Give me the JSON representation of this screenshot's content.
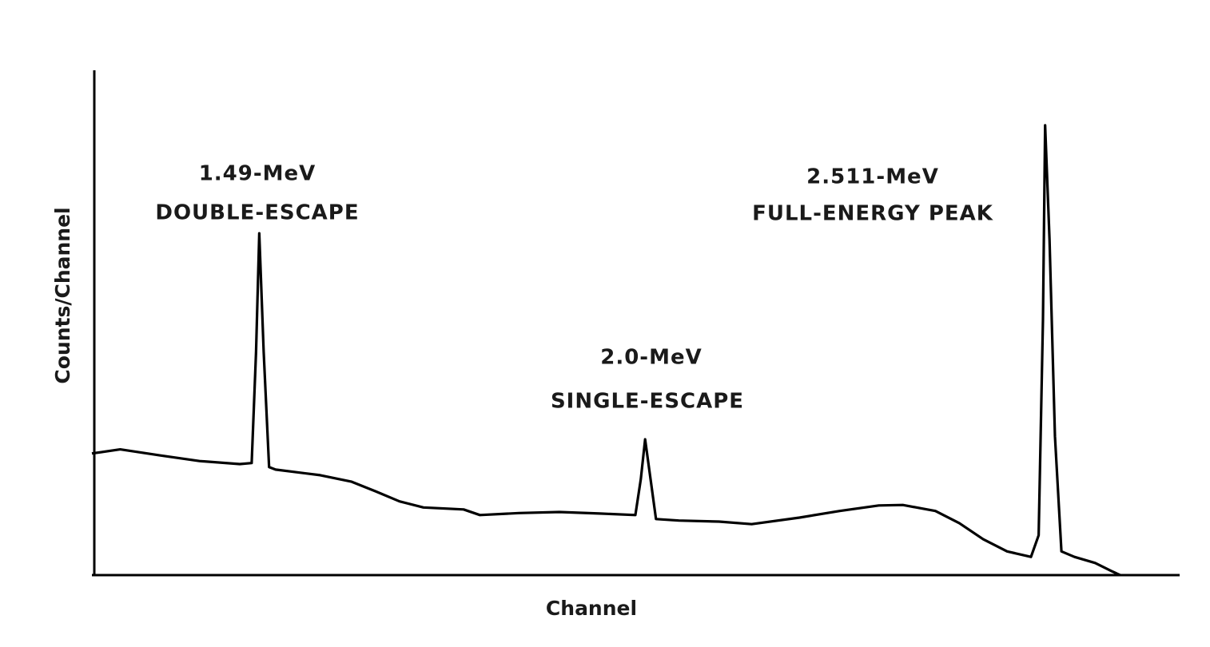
{
  "chart_data": {
    "type": "line",
    "x_label": "Channel",
    "y_label": "Counts/Channel",
    "annotations": [
      "1.49-MeV",
      "DOUBLE-ESCAPE",
      "2.0-MeV",
      "SINGLE-ESCAPE",
      "2.511-MeV",
      "FULL-ENERGY PEAK"
    ],
    "xlim": [
      0,
      100
    ],
    "ylim": [
      0,
      100
    ],
    "x": [
      0,
      2.6,
      6.3,
      9.9,
      13.6,
      14.7,
      15.1,
      15.4,
      15.8,
      16.3,
      16.9,
      21.0,
      23.9,
      26.1,
      28.3,
      30.5,
      34.2,
      35.7,
      39.3,
      43.0,
      46.7,
      50.0,
      50.5,
      50.9,
      51.4,
      51.9,
      54.0,
      57.7,
      60.7,
      65.1,
      68.8,
      72.4,
      74.6,
      77.6,
      79.8,
      82.0,
      84.2,
      86.4,
      87.1,
      87.5,
      87.7,
      88.1,
      88.6,
      89.2,
      90.4,
      92.3,
      93.8,
      94.6
    ],
    "series": [
      {
        "color": "#000000",
        "values": [
          24.1,
          24.9,
          23.7,
          22.6,
          22.0,
          22.2,
          44.3,
          67.7,
          44.3,
          21.4,
          20.9,
          19.8,
          18.5,
          16.6,
          14.6,
          13.4,
          13.0,
          11.9,
          12.3,
          12.5,
          12.2,
          11.9,
          19.0,
          26.9,
          19.0,
          11.1,
          10.8,
          10.6,
          10.1,
          11.4,
          12.7,
          13.8,
          13.9,
          12.7,
          10.3,
          7.1,
          4.7,
          3.6,
          7.9,
          50.6,
          89.1,
          66.5,
          27.5,
          4.7,
          3.6,
          2.4,
          0.8,
          0
        ]
      }
    ]
  }
}
